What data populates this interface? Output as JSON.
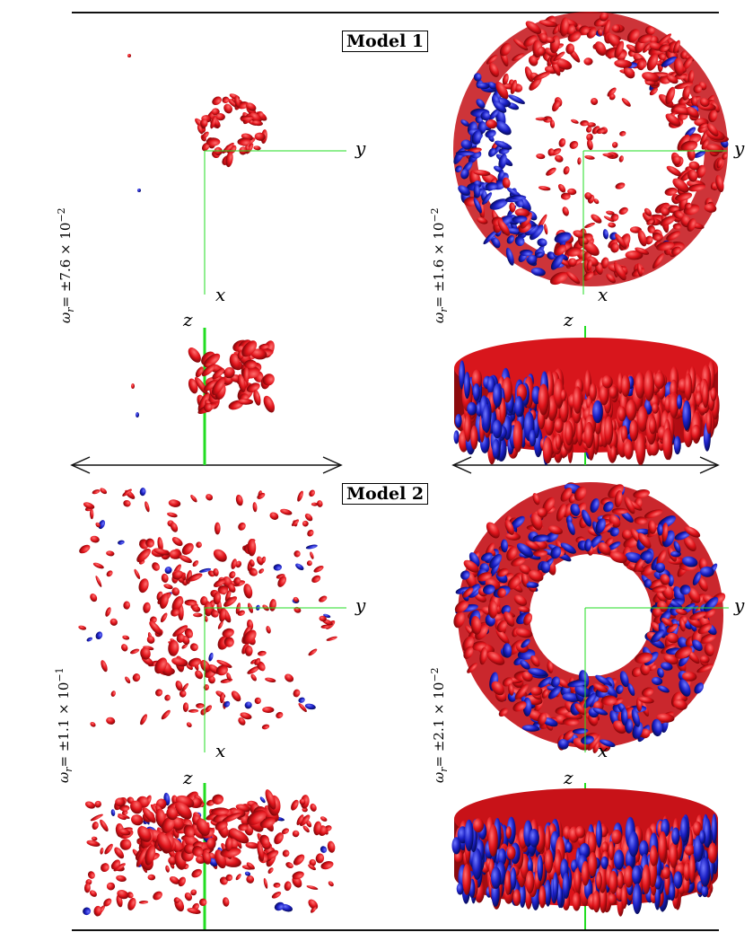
{
  "models": [
    {
      "title": "Model 1",
      "omega_left": {
        "prefix": "ω",
        "sub": "r",
        "text": "= ±7.6 × 10",
        "exp": "−2"
      },
      "omega_right": {
        "prefix": "ω",
        "sub": "r",
        "text": "= ±1.6 × 10",
        "exp": "−2"
      }
    },
    {
      "title": "Model 2",
      "omega_left": {
        "prefix": "ω",
        "sub": "r",
        "text": "= ±1.1 × 10",
        "exp": "−1"
      },
      "omega_right": {
        "prefix": "ω",
        "sub": "r",
        "text": "= ±2.1 × 10",
        "exp": "−2"
      }
    }
  ],
  "axis": {
    "x": "x",
    "y": "y",
    "z": "z"
  },
  "colors": {
    "positive": "#e0141b",
    "negative": "#1a1fc4",
    "axis": "#22dd22",
    "rule": "#111111"
  }
}
